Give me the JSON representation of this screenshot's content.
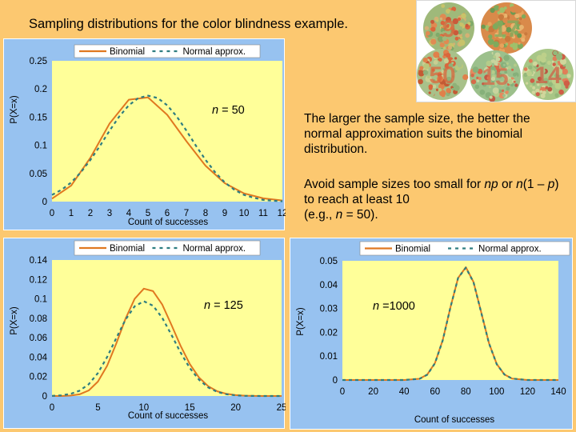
{
  "page": {
    "title": "Sampling distributions for the color blindness example.",
    "note1": "The larger the sample size, the better the normal approximation suits the binomial distribution.",
    "note2": {
      "a": "Avoid sample sizes too small for ",
      "np": "np",
      "b": " or ",
      "n1": "n",
      "c": "(1 – ",
      "p": "p",
      "d": ") to reach at least 10",
      "e": "(e.g., ",
      "n2": "n",
      "f": " = 50)."
    },
    "colors": {
      "background": "#FCC870",
      "panel": "#97C2F0",
      "plot_area": "#FFFF99",
      "binomial": "#E07820",
      "normal": "#2E7D80"
    }
  },
  "ishihara_plates": {
    "label_1": "9",
    "label_2": "17",
    "label_3": "50",
    "label_4": "15",
    "label_5": "14"
  },
  "chart_data": [
    {
      "id": "n50",
      "type": "line",
      "title": "",
      "n_label_pre": "n",
      "n_label_post": " = 50",
      "xlabel": "Count of successes",
      "ylabel": "P(X=x)",
      "xlim": [
        0,
        12
      ],
      "ylim": [
        0,
        0.25
      ],
      "xticks": [
        0,
        1,
        2,
        3,
        4,
        5,
        6,
        7,
        8,
        9,
        10,
        11,
        12
      ],
      "yticks": [
        0,
        0.05,
        0.1,
        0.15,
        0.2,
        0.25
      ],
      "yticklabels": [
        "0",
        "0.05",
        "0.1",
        "0.15",
        "0.2",
        "0.25"
      ],
      "legend": [
        "Binomial",
        "Normal approx."
      ],
      "series": [
        {
          "name": "Binomial",
          "style": "solid",
          "x": [
            0,
            1,
            2,
            3,
            4,
            5,
            6,
            7,
            8,
            9,
            10,
            11,
            12
          ],
          "values": [
            0.0052,
            0.0286,
            0.0779,
            0.1386,
            0.1809,
            0.1849,
            0.1541,
            0.1072,
            0.0635,
            0.0326,
            0.0146,
            0.0058,
            0.002
          ]
        },
        {
          "name": "Normal approx.",
          "style": "dashed",
          "x": [
            0,
            0.5,
            1,
            1.5,
            2,
            2.5,
            3,
            3.5,
            4,
            4.5,
            5,
            5.5,
            6,
            6.5,
            7,
            7.5,
            8,
            8.5,
            9,
            9.5,
            10,
            10.5,
            11,
            11.5,
            12
          ],
          "values": [
            0.012,
            0.021,
            0.034,
            0.052,
            0.074,
            0.099,
            0.126,
            0.151,
            0.171,
            0.184,
            0.188,
            0.184,
            0.171,
            0.151,
            0.126,
            0.099,
            0.074,
            0.052,
            0.034,
            0.021,
            0.012,
            0.007,
            0.003,
            0.0015,
            0.0006
          ]
        }
      ]
    },
    {
      "id": "n125",
      "type": "line",
      "title": "",
      "n_label_pre": "n",
      "n_label_post": " = 125",
      "xlabel": "Count of successes",
      "ylabel": "P(X=x)",
      "xlim": [
        0,
        25
      ],
      "ylim": [
        0,
        0.14
      ],
      "xticks": [
        0,
        5,
        10,
        15,
        20,
        25
      ],
      "yticks": [
        0,
        0.02,
        0.04,
        0.06,
        0.08,
        0.1,
        0.12,
        0.14
      ],
      "yticklabels": [
        "0",
        "0.02",
        "0.04",
        "0.06",
        "0.08",
        "0.1",
        "0.12",
        "0.14"
      ],
      "legend": [
        "Binomial",
        "Normal approx."
      ],
      "series": [
        {
          "name": "Binomial",
          "style": "solid",
          "x": [
            0,
            1,
            2,
            3,
            4,
            5,
            6,
            7,
            8,
            9,
            10,
            11,
            12,
            13,
            14,
            15,
            16,
            17,
            18,
            19,
            20,
            21,
            22,
            23,
            24,
            25
          ],
          "values": [
            0,
            0,
            0.0004,
            0.0017,
            0.0057,
            0.0148,
            0.0311,
            0.0541,
            0.0794,
            0.1,
            0.1105,
            0.108,
            0.0941,
            0.0734,
            0.0517,
            0.033,
            0.0191,
            0.0101,
            0.0049,
            0.0022,
            0.0009,
            0.0003,
            0.0001,
            0,
            0,
            0
          ]
        },
        {
          "name": "Normal approx.",
          "style": "dashed",
          "x": [
            0,
            1,
            2,
            3,
            4,
            5,
            6,
            7,
            8,
            9,
            10,
            11,
            12,
            13,
            14,
            15,
            16,
            17,
            18,
            19,
            20,
            21,
            22,
            23,
            24,
            25
          ],
          "values": [
            0.0002,
            0.0007,
            0.0021,
            0.0054,
            0.0121,
            0.0236,
            0.0401,
            0.0597,
            0.0785,
            0.0923,
            0.0975,
            0.093,
            0.0805,
            0.0631,
            0.0448,
            0.0288,
            0.0168,
            0.0088,
            0.0042,
            0.0018,
            0.0007,
            0.0002,
            0.0001,
            0,
            0,
            0
          ]
        }
      ]
    },
    {
      "id": "n1000",
      "type": "line",
      "title": "",
      "n_label_pre": "n",
      "n_label_post": " =1000",
      "xlabel": "Count of successes",
      "ylabel": "P(X=x)",
      "xlim": [
        0,
        140
      ],
      "ylim": [
        0,
        0.05
      ],
      "xticks": [
        0,
        20,
        40,
        60,
        80,
        100,
        120,
        140
      ],
      "yticks": [
        0,
        0.01,
        0.02,
        0.03,
        0.04,
        0.05
      ],
      "yticklabels": [
        "0",
        "0.01",
        "0.02",
        "0.03",
        "0.04",
        "0.05"
      ],
      "legend": [
        "Binomial",
        "Normal approx."
      ],
      "series": [
        {
          "name": "Binomial",
          "style": "solid",
          "x": [
            0,
            20,
            40,
            50,
            55,
            60,
            65,
            70,
            75,
            80,
            85,
            90,
            95,
            100,
            105,
            110,
            120,
            140
          ],
          "values": [
            0,
            0,
            0,
            0.0005,
            0.0023,
            0.0071,
            0.0167,
            0.0304,
            0.0428,
            0.0473,
            0.0411,
            0.0283,
            0.0155,
            0.0067,
            0.0023,
            0.0006,
            0,
            0
          ]
        },
        {
          "name": "Normal approx.",
          "style": "dashed",
          "x": [
            0,
            20,
            40,
            50,
            55,
            60,
            65,
            70,
            75,
            80,
            85,
            90,
            95,
            100,
            105,
            110,
            120,
            140
          ],
          "values": [
            0,
            0,
            0,
            0.0005,
            0.0022,
            0.007,
            0.0166,
            0.0304,
            0.0428,
            0.0471,
            0.041,
            0.0282,
            0.0154,
            0.0066,
            0.0023,
            0.0006,
            0,
            0
          ]
        }
      ]
    }
  ]
}
